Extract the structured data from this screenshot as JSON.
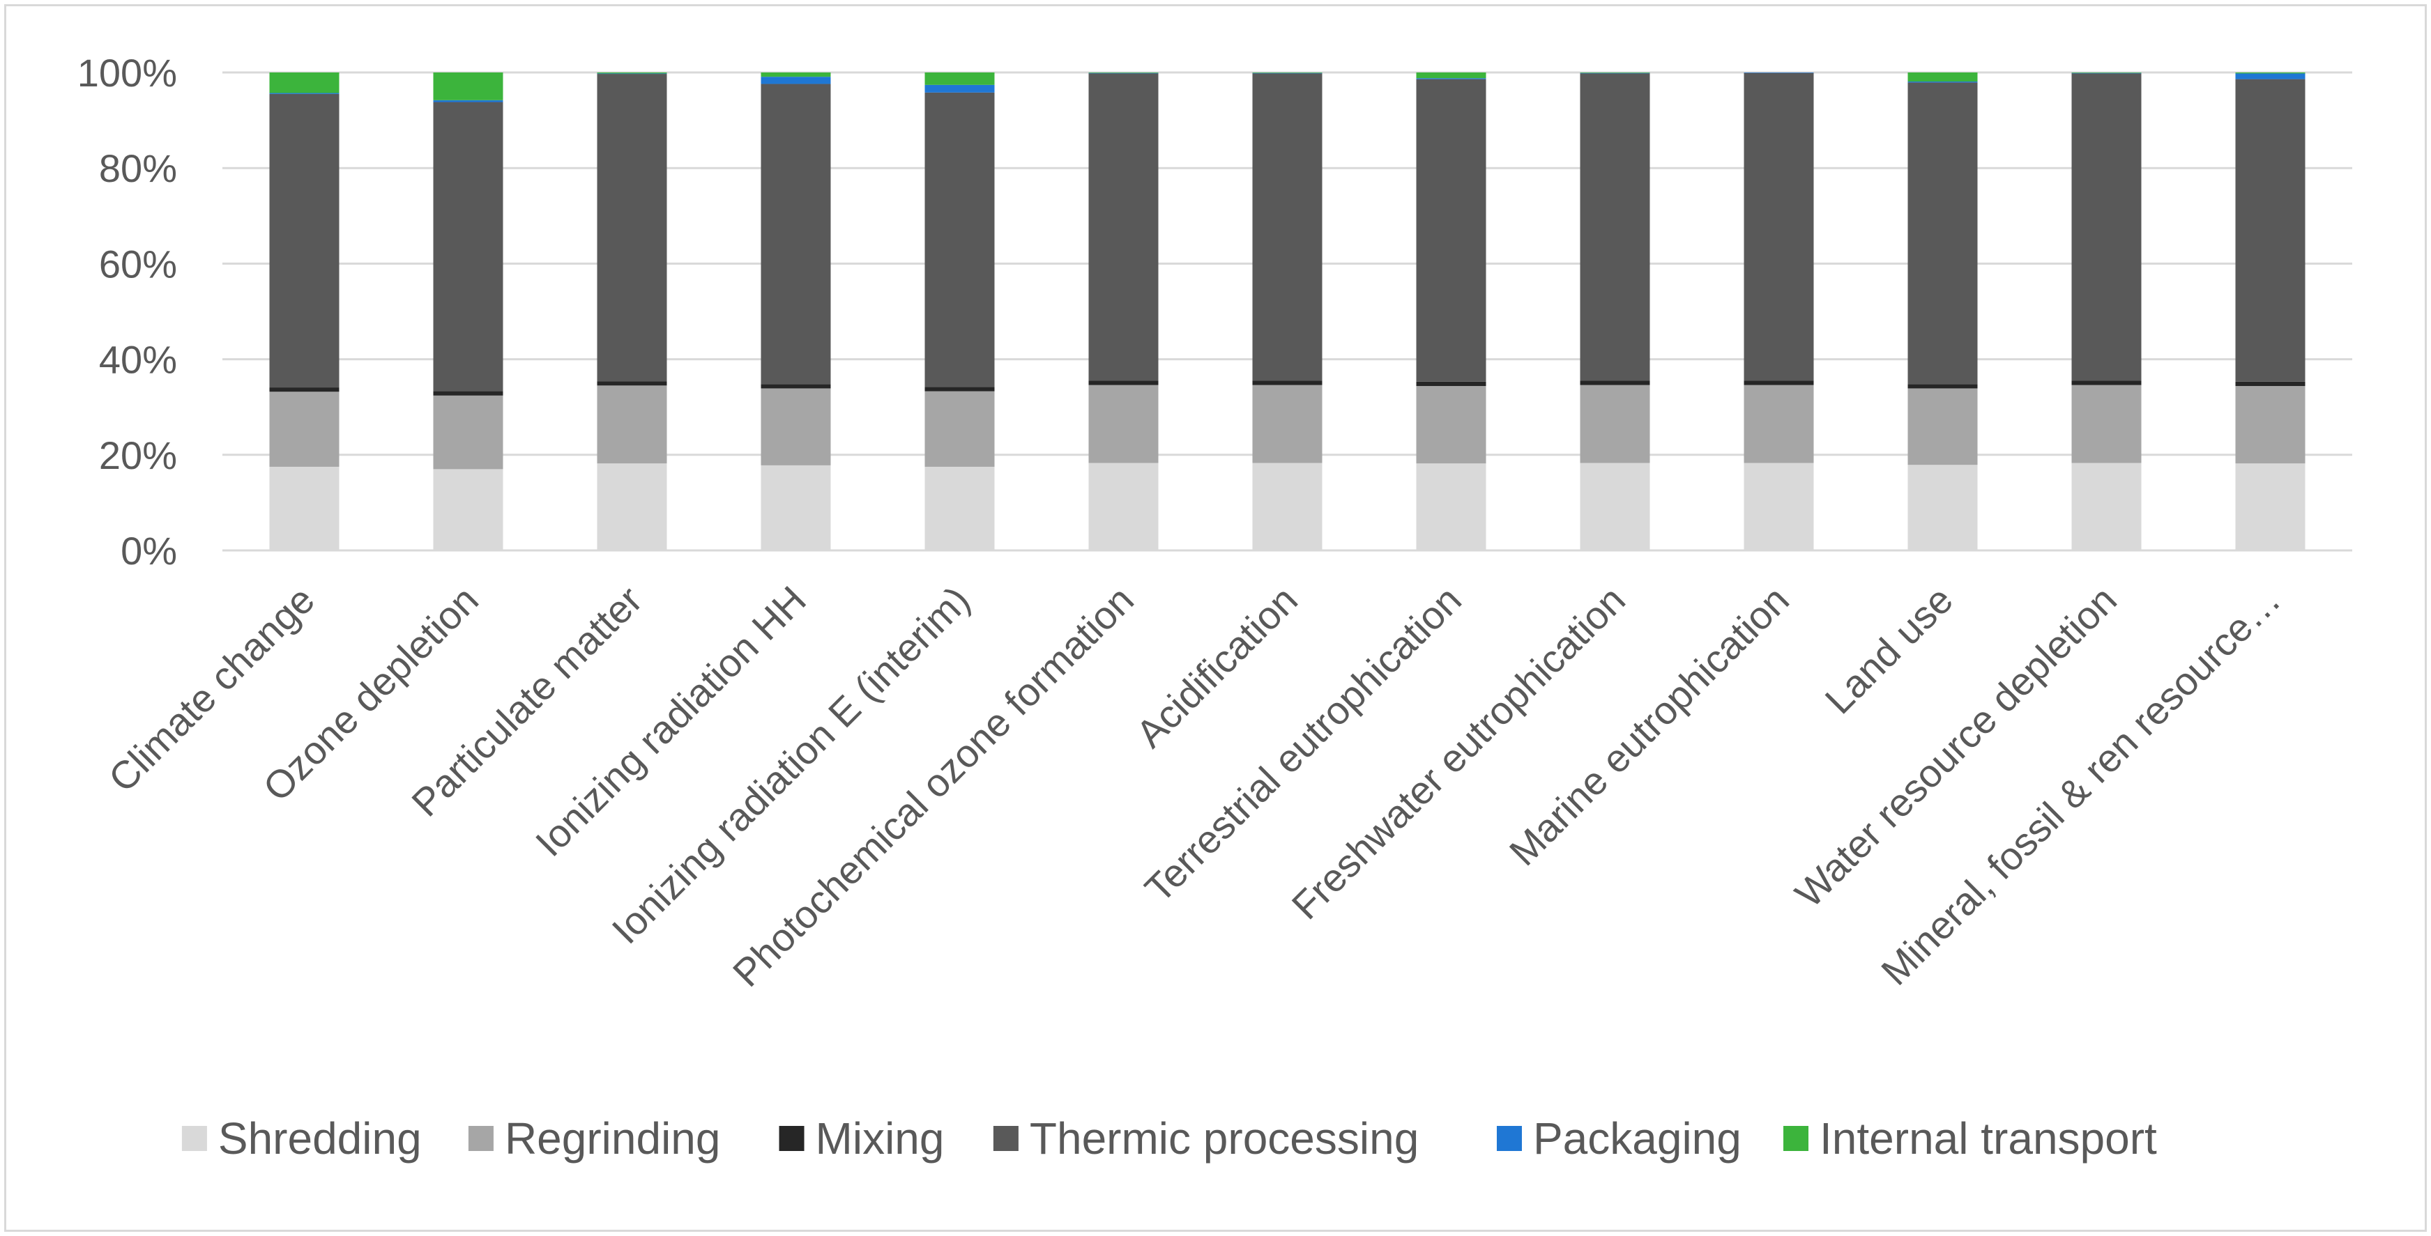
{
  "chart_data": {
    "type": "stacked-bar-100",
    "title": "",
    "xlabel": "",
    "ylabel": "",
    "ylim": [
      0,
      100
    ],
    "y_ticks": [
      "0%",
      "20%",
      "40%",
      "60%",
      "80%",
      "100%"
    ],
    "grid": true,
    "legend_position": "bottom",
    "categories": [
      "Climate change",
      "Ozone depletion",
      "Particulate matter",
      "Ionizing radiation HH",
      "Ionizing radiation E (interim)",
      "Photochemical ozone formation",
      "Acidification",
      "Terrestrial eutrophication",
      "Freshwater eutrophication",
      "Marine eutrophication",
      "Land use",
      "Water resource depletion",
      "Mineral, fossil & ren resource…"
    ],
    "series": [
      {
        "name": "Shredding",
        "color": "#d9d9d9",
        "values": [
          17.5,
          17,
          18.2,
          17.8,
          17.5,
          18.3,
          18.3,
          18.2,
          18.3,
          18.3,
          17.9,
          18.3,
          18.2
        ]
      },
      {
        "name": "Regrinding",
        "color": "#a6a6a6",
        "values": [
          15.7,
          15.4,
          16.3,
          16.1,
          15.8,
          16.3,
          16.3,
          16.2,
          16.3,
          16.3,
          16,
          16.3,
          16.2
        ]
      },
      {
        "name": "Mixing",
        "color": "#262626",
        "values": [
          0.9,
          0.9,
          0.9,
          0.9,
          0.9,
          0.9,
          0.9,
          0.9,
          0.9,
          0.9,
          0.9,
          0.9,
          0.9
        ]
      },
      {
        "name": "Thermic processing",
        "color": "#595959",
        "values": [
          61.4,
          60.5,
          64.3,
          62.8,
          61.6,
          64.3,
          64.3,
          63.3,
          64.3,
          64.4,
          63.1,
          64.3,
          63.3
        ]
      },
      {
        "name": "Packaging",
        "color": "#1f77d4",
        "values": [
          0.2,
          0.4,
          0.1,
          1.5,
          1.6,
          0.1,
          0.1,
          0.2,
          0.1,
          0.1,
          0.2,
          0.1,
          1.2
        ]
      },
      {
        "name": "Internal transport",
        "color": "#3cb43c",
        "values": [
          4.3,
          5.8,
          0.2,
          0.9,
          2.6,
          0.1,
          0.1,
          1.2,
          0.1,
          0.0,
          1.9,
          0.1,
          0.2
        ]
      }
    ]
  }
}
